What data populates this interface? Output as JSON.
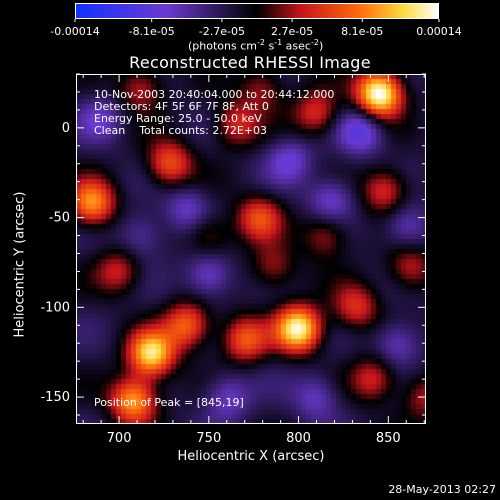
{
  "colorbar": {
    "tick_labels": [
      "-0.00014",
      "-8.1e-05",
      "-2.7e-05",
      "2.7e-05",
      "8.1e-05",
      "0.00014"
    ],
    "tick_values": [
      -0.00014,
      -8.1e-05,
      -2.7e-05,
      2.7e-05,
      8.1e-05,
      0.00014
    ],
    "units_pre": "(photons cm",
    "units_exp1": "-2",
    "units_mid": " s",
    "units_exp2": "-1",
    "units_post": " asec",
    "units_exp3": "-2",
    "units_close": ")"
  },
  "chart_data": {
    "type": "heatmap",
    "title": "Reconstructed RHESSI Image",
    "xlabel": "Heliocentric X (arcsec)",
    "ylabel": "Heliocentric Y (arcsec)",
    "xlim": [
      676,
      871
    ],
    "ylim": [
      -165,
      30
    ],
    "x_ticks": [
      700,
      750,
      800,
      850
    ],
    "y_ticks": [
      0,
      -50,
      -100,
      -150
    ],
    "header_lines": [
      "10-Nov-2003 20:40:04.000 to 20:44:12.000",
      "Detectors: 4F 5F 6F 7F 8F, Att 0",
      "Energy Range: 25.0 - 50.0 keV",
      "Clean    Total counts: 2.72E+03"
    ],
    "peak_label": "Position of Peak = [845,19]",
    "peak": [
      845,
      19
    ],
    "colormap": "blue-purple-black-red-orange-yellow-white",
    "sources": [
      {
        "x": 845,
        "y": 19,
        "v": 1.0
      },
      {
        "x": 800,
        "y": -112,
        "v": 0.9
      },
      {
        "x": 718,
        "y": -126,
        "v": 0.82
      },
      {
        "x": 708,
        "y": -152,
        "v": 0.7
      },
      {
        "x": 685,
        "y": -42,
        "v": 0.65
      },
      {
        "x": 738,
        "y": -110,
        "v": 0.55
      },
      {
        "x": 770,
        "y": -118,
        "v": 0.5
      },
      {
        "x": 728,
        "y": -20,
        "v": 0.5
      },
      {
        "x": 778,
        "y": -50,
        "v": 0.45
      },
      {
        "x": 765,
        "y": 2,
        "v": 0.38
      },
      {
        "x": 810,
        "y": 8,
        "v": 0.4
      },
      {
        "x": 848,
        "y": -35,
        "v": 0.42
      },
      {
        "x": 862,
        "y": -78,
        "v": 0.35
      },
      {
        "x": 832,
        "y": -100,
        "v": 0.4
      },
      {
        "x": 700,
        "y": -80,
        "v": 0.35
      },
      {
        "x": 842,
        "y": -140,
        "v": 0.38
      },
      {
        "x": 870,
        "y": -150,
        "v": 0.3
      },
      {
        "x": 712,
        "y": 22,
        "v": 0.35
      },
      {
        "x": 786,
        "y": -78,
        "v": 0.3
      },
      {
        "x": 750,
        "y": -60,
        "v": 0.28
      },
      {
        "x": 815,
        "y": -60,
        "v": 0.32
      },
      {
        "x": 780,
        "y": 22,
        "v": 0.3
      },
      {
        "x": 750,
        "y": -82,
        "v": -0.35
      },
      {
        "x": 818,
        "y": -40,
        "v": -0.32
      },
      {
        "x": 835,
        "y": -2,
        "v": -0.4
      },
      {
        "x": 795,
        "y": -18,
        "v": -0.3
      },
      {
        "x": 738,
        "y": -45,
        "v": -0.28
      },
      {
        "x": 760,
        "y": -150,
        "v": -0.3
      },
      {
        "x": 810,
        "y": -150,
        "v": -0.28
      },
      {
        "x": 712,
        "y": -60,
        "v": -0.25
      },
      {
        "x": 855,
        "y": -120,
        "v": -0.3
      },
      {
        "x": 690,
        "y": 5,
        "v": -0.25
      },
      {
        "x": 860,
        "y": -55,
        "v": -0.3
      }
    ]
  },
  "footer": {
    "timestamp": "28-May-2013 02:27"
  }
}
